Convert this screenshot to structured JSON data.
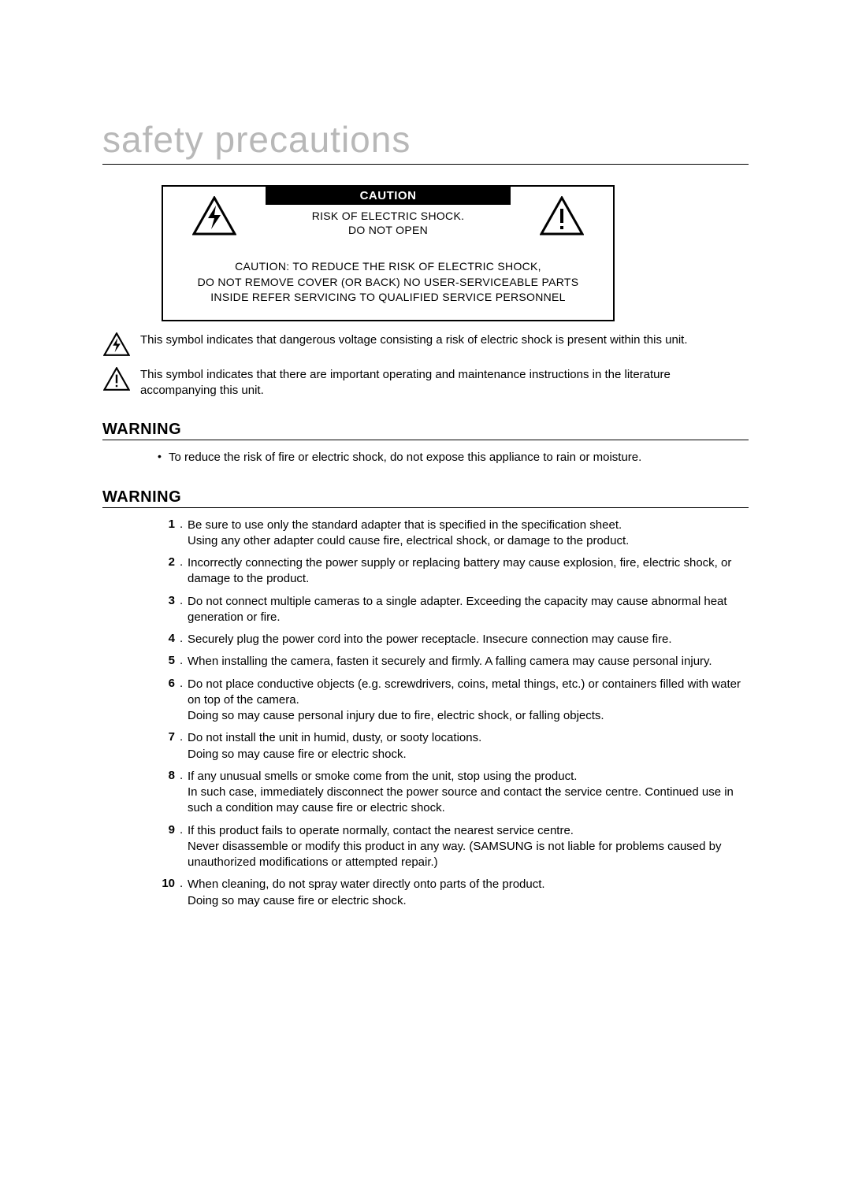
{
  "title": "safety precautions",
  "caution_box": {
    "header": "CAUTION",
    "line1": "RISK OF ELECTRIC SHOCK.",
    "line2": "DO NOT OPEN",
    "bottom": "CAUTION: TO REDUCE THE RISK OF ELECTRIC SHOCK,\nDO NOT REMOVE COVER (OR BACK) NO USER-SERVICEABLE PARTS\nINSIDE REFER SERVICING TO QUALIFIED SERVICE PERSONNEL"
  },
  "symbol_explanations": [
    "This symbol indicates that dangerous voltage consisting a risk of electric shock is present within this unit.",
    "This symbol indicates that there are important operating and maintenance instructions in the literature accompanying this unit."
  ],
  "warning1": {
    "heading": "WARNING",
    "bullet": "To reduce the risk of fire or electric shock, do not expose this appliance to rain or moisture."
  },
  "warning2": {
    "heading": "WARNING",
    "items": [
      "Be sure to use only the standard adapter that is specified in the specification sheet.\nUsing any other adapter could cause fire, electrical shock, or damage to the product.",
      "Incorrectly connecting the power supply or replacing battery may cause explosion, fire, electric shock, or damage to the product.",
      "Do not connect multiple cameras to a single adapter. Exceeding the capacity may cause abnormal heat generation or fire.",
      "Securely plug the power cord into the power receptacle. Insecure connection may cause fire.",
      "When installing the camera, fasten it securely and firmly. A falling camera may cause personal injury.",
      "Do not place conductive objects (e.g. screwdrivers, coins, metal things, etc.) or containers filled with water on top of the camera.\nDoing so may cause personal injury due to fire, electric shock, or falling objects.",
      "Do not install the unit in humid, dusty, or sooty locations.\nDoing so may cause fire or electric shock.",
      "If any unusual smells or smoke come from the unit, stop using the product.\nIn such case, immediately disconnect the power source and contact the service centre. Continued use in such a condition may cause fire or electric shock.",
      "If this product fails to operate normally, contact the nearest service centre.\nNever disassemble or modify this product in any way. (SAMSUNG is not liable for problems caused by unauthorized modifications or attempted repair.)",
      "When cleaning, do not spray water directly onto parts of the product.\nDoing so may cause fire or electric shock."
    ]
  },
  "colors": {
    "title_gray": "#b8b8b8",
    "text": "#000000",
    "bg": "#ffffff"
  }
}
